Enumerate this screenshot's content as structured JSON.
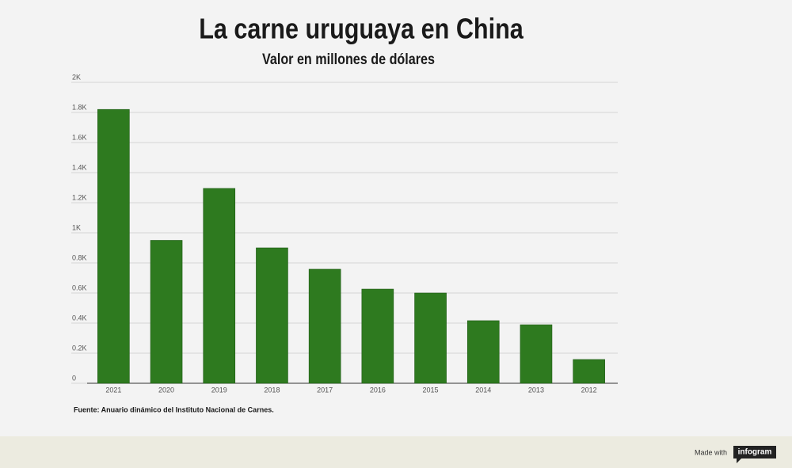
{
  "chart_data": {
    "type": "bar",
    "title": "La carne uruguaya en China",
    "subtitle": "Valor en millones de dólares",
    "categories": [
      "2021",
      "2020",
      "2019",
      "2018",
      "2017",
      "2016",
      "2015",
      "2014",
      "2013",
      "2012"
    ],
    "values": [
      1820,
      950,
      1295,
      900,
      758,
      626,
      600,
      416,
      389,
      158
    ],
    "color": "#2e7a1f",
    "ylim": [
      0,
      2000
    ],
    "yticks": [
      0,
      {
        "value": 200,
        "label": "0.2K"
      },
      {
        "value": 400,
        "label": "0.4K"
      },
      {
        "value": 600,
        "label": "0.6K"
      },
      {
        "value": 800,
        "label": "0.8K"
      },
      {
        "value": 1000,
        "label": "1K"
      },
      {
        "value": 1200,
        "label": "1.2K"
      },
      {
        "value": 1400,
        "label": "1.4K"
      },
      {
        "value": 1600,
        "label": "1.6K"
      },
      {
        "value": 1800,
        "label": "1.8K"
      },
      {
        "value": 2000,
        "label": "2K"
      }
    ],
    "grid": true,
    "source": "Fuente: Anuario dinámico del Instituto Nacional de Carnes."
  },
  "footer": {
    "made_with": "Made with",
    "brand": "infogram"
  }
}
